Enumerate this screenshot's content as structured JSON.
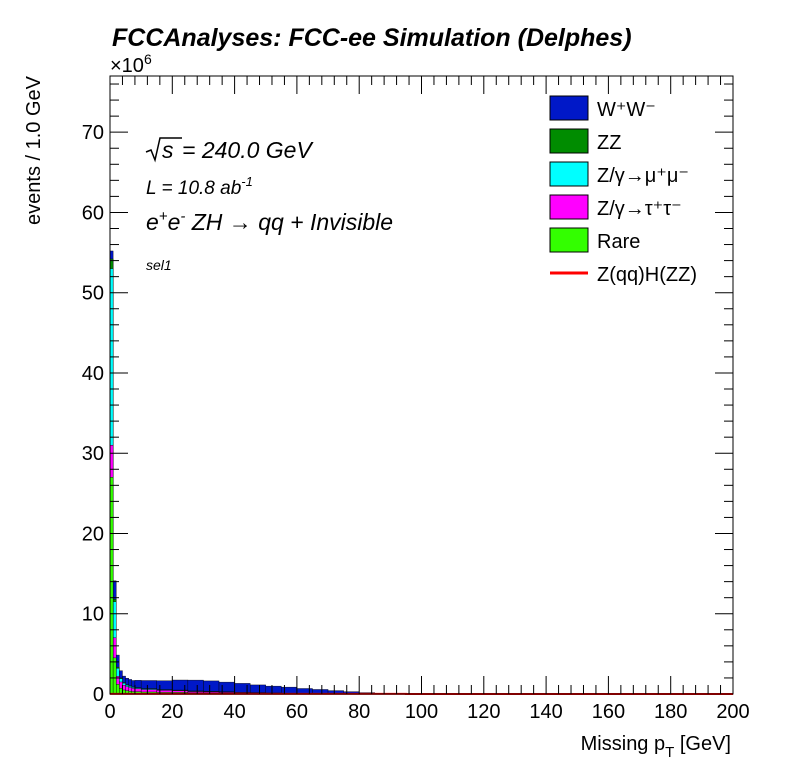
{
  "chart_data": {
    "type": "area",
    "title": "FCCAnalyses: FCC-ee Simulation (Delphes)",
    "xlabel": "Missing p",
    "xlabel_sub": "T",
    "xlabel_unit": " [GeV]",
    "ylabel": "events / 1.0 GeV",
    "y_multiplier": "×10",
    "y_multiplier_exp": "6",
    "xlim": [
      0,
      200
    ],
    "ylim": [
      0,
      77
    ],
    "x_ticks": [
      0,
      20,
      40,
      60,
      80,
      100,
      120,
      140,
      160,
      180,
      200
    ],
    "y_ticks": [
      0,
      10,
      20,
      30,
      40,
      50,
      60,
      70
    ],
    "annotations": {
      "sqrt_s": "= 240.0 GeV",
      "lumi_prefix": "L = 10.8 ab",
      "lumi_exp": "-1",
      "process": "ZH → qq + Invisible",
      "selection": "sel1"
    },
    "legend": {
      "position": "top-right",
      "entries": [
        {
          "label": "W⁺W⁻",
          "color": "#0018c8",
          "kind": "fill"
        },
        {
          "label": "ZZ",
          "color": "#008c00",
          "kind": "fill"
        },
        {
          "label": "Z/γ→μ⁺μ⁻",
          "color": "#00ffff",
          "kind": "fill"
        },
        {
          "label": "Z/γ→τ⁺τ⁻",
          "color": "#ff00ff",
          "kind": "fill"
        },
        {
          "label": "Rare",
          "color": "#33ff00",
          "kind": "fill"
        },
        {
          "label": "Z(qq)H(ZZ)",
          "color": "#ff0000",
          "kind": "line"
        }
      ]
    },
    "x_bins": [
      0,
      1,
      2,
      3,
      4,
      5,
      6,
      7,
      8,
      10,
      15,
      20,
      25,
      30,
      35,
      40,
      45,
      50,
      55,
      60,
      65,
      70,
      75,
      80,
      85,
      90,
      95,
      100,
      110,
      120,
      130,
      140,
      150,
      160,
      170,
      180,
      190,
      200
    ],
    "stack": [
      {
        "name": "Rare",
        "color": "#33ff00",
        "values": [
          27,
          4.5,
          1.2,
          0.7,
          0.5,
          0.4,
          0.35,
          0.3,
          0.3,
          0.25,
          0.2,
          0.2,
          0.15,
          0.15,
          0.12,
          0.1,
          0.08,
          0.06,
          0.05,
          0.04,
          0.03,
          0.02,
          0.02,
          0.01,
          0.01,
          0.005,
          0.004,
          0.002,
          0.001,
          0.001,
          0.001,
          0.001,
          0.001,
          0.001,
          0.001,
          0.001,
          0.001
        ]
      },
      {
        "name": "Z/γ→τ⁺τ⁻",
        "color": "#ff00ff",
        "values": [
          4,
          2.5,
          1.0,
          0.8,
          0.6,
          0.5,
          0.45,
          0.4,
          0.35,
          0.3,
          0.25,
          0.2,
          0.15,
          0.12,
          0.1,
          0.08,
          0.06,
          0.04,
          0.03,
          0.02,
          0.02,
          0.01,
          0.01,
          0.005,
          0.004,
          0.003,
          0.002,
          0.001,
          0.001,
          0.001,
          0.001,
          0.001,
          0.001,
          0.001,
          0.001,
          0.001,
          0.001
        ]
      },
      {
        "name": "Z/γ→μ⁺μ⁻",
        "color": "#00ffff",
        "values": [
          22,
          4.5,
          1.0,
          0.4,
          0.25,
          0.2,
          0.15,
          0.12,
          0.1,
          0.08,
          0.05,
          0.04,
          0.03,
          0.02,
          0.02,
          0.01,
          0.01,
          0.01,
          0.005,
          0.004,
          0.003,
          0.002,
          0.001,
          0.001,
          0.001,
          0.001,
          0.001,
          0.001,
          0.001,
          0.001,
          0.001,
          0.001,
          0.001,
          0.001,
          0.001,
          0.001,
          0.001
        ]
      },
      {
        "name": "ZZ",
        "color": "#008c00",
        "values": [
          1.2,
          0.3,
          0.15,
          0.1,
          0.08,
          0.07,
          0.06,
          0.06,
          0.05,
          0.05,
          0.05,
          0.05,
          0.05,
          0.04,
          0.04,
          0.03,
          0.03,
          0.02,
          0.02,
          0.02,
          0.01,
          0.01,
          0.01,
          0.005,
          0.004,
          0.003,
          0.002,
          0.001,
          0.001,
          0.001,
          0.001,
          0.001,
          0.001,
          0.001,
          0.001,
          0.001,
          0.001
        ]
      },
      {
        "name": "W⁺W⁻",
        "color": "#0018c8",
        "values": [
          1.0,
          2.3,
          1.5,
          0.9,
          0.8,
          0.8,
          0.8,
          0.8,
          0.9,
          1.0,
          1.1,
          1.25,
          1.35,
          1.3,
          1.2,
          1.1,
          0.95,
          0.85,
          0.75,
          0.6,
          0.5,
          0.38,
          0.25,
          0.15,
          0.07,
          0.03,
          0.015,
          0.01,
          0.005,
          0.003,
          0.002,
          0.001,
          0.001,
          0.001,
          0.001,
          0.001,
          0.001
        ]
      }
    ],
    "signal": {
      "name": "Z(qq)H(ZZ)",
      "color": "#ff0000",
      "values": [
        0.02,
        0.02,
        0.02,
        0.02,
        0.02,
        0.02,
        0.02,
        0.02,
        0.02,
        0.02,
        0.02,
        0.02,
        0.02,
        0.02,
        0.02,
        0.02,
        0.02,
        0.02,
        0.02,
        0.02,
        0.02,
        0.02,
        0.02,
        0.02,
        0.02,
        0.01,
        0.005,
        0.002,
        0.001,
        0.001,
        0.001,
        0.001,
        0.001,
        0.001,
        0.001,
        0.001,
        0.001
      ]
    }
  }
}
